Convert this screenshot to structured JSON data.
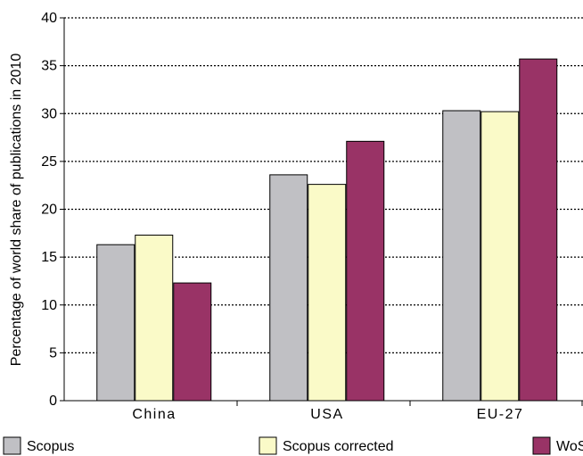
{
  "chart_data": {
    "type": "bar",
    "title": "",
    "xlabel": "",
    "ylabel": "Percentage of world share of publications in 2010",
    "ylim": [
      0,
      40
    ],
    "yticks": [
      0,
      5,
      10,
      15,
      20,
      25,
      30,
      35,
      40
    ],
    "grid": true,
    "legend_position": "bottom",
    "categories": [
      "China",
      "USA",
      "EU-27"
    ],
    "series": [
      {
        "name": "Scopus",
        "color": "#c0c0c4",
        "values": [
          16.3,
          23.6,
          30.3
        ]
      },
      {
        "name": "Scopus corrected",
        "color": "#fafac8",
        "values": [
          17.3,
          22.6,
          30.2
        ]
      },
      {
        "name": "WoS",
        "color": "#993366",
        "values": [
          12.3,
          27.1,
          35.7
        ]
      }
    ]
  }
}
